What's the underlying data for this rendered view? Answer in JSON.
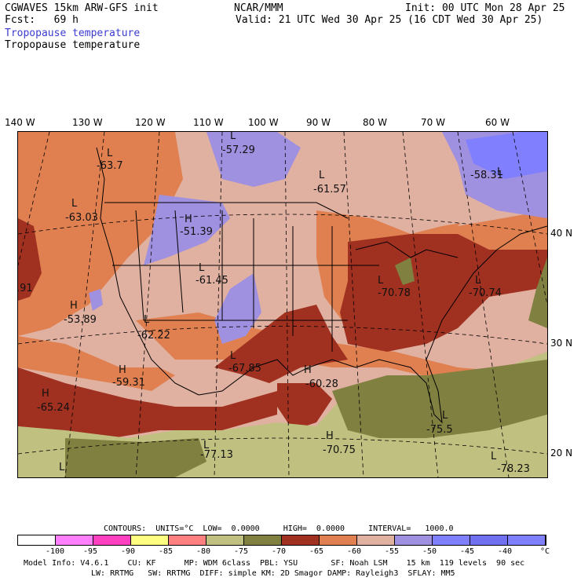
{
  "header": {
    "model": "CGWAVES 15km ARW-GFS init",
    "fcst": "Fcst:   69 h",
    "org": "NCAR/MMM",
    "init": "Init: 00 UTC Mon 28 Apr 25",
    "valid": "Valid: 21 UTC Wed 30 Apr 25 (16 CDT Wed 30 Apr 25)",
    "field1": "Tropopause temperature",
    "field2": "Tropopause temperature"
  },
  "lon_labels": [
    "140 W",
    "130 W",
    "120 W",
    "110 W",
    "100 W",
    "90 W",
    "80 W",
    "70 W",
    "60 W"
  ],
  "lat_labels": [
    "40 N",
    "30 N",
    "20 N"
  ],
  "map_labels": [
    {
      "t": "L"
    },
    {
      "t": "-63.7"
    },
    {
      "t": "L"
    },
    {
      "t": "-57.29"
    },
    {
      "t": "L"
    },
    {
      "t": "-61.57"
    },
    {
      "t": "L"
    },
    {
      "t": "-58.31"
    },
    {
      "t": "L"
    },
    {
      "t": "-63.03"
    },
    {
      "t": "H"
    },
    {
      "t": "-51.39"
    },
    {
      "t": "L"
    },
    {
      "t": "-61.45"
    },
    {
      "t": "L"
    },
    {
      "t": "-70.78"
    },
    {
      "t": "L"
    },
    {
      "t": "-70.74"
    },
    {
      "t": ".91"
    },
    {
      "t": "H"
    },
    {
      "t": "-53.89"
    },
    {
      "t": "L"
    },
    {
      "t": "-62.22"
    },
    {
      "t": "L"
    },
    {
      "t": "-67.85"
    },
    {
      "t": "H"
    },
    {
      "t": "-60.28"
    },
    {
      "t": "H"
    },
    {
      "t": "-59.31"
    },
    {
      "t": "H"
    },
    {
      "t": "-65.24"
    },
    {
      "t": "L"
    },
    {
      "t": "-75.5"
    },
    {
      "t": "L"
    },
    {
      "t": "-77.13"
    },
    {
      "t": "H"
    },
    {
      "t": "-70.75"
    },
    {
      "t": "L"
    },
    {
      "t": "-78.23"
    },
    {
      "t": "L"
    }
  ],
  "contours_line": "CONTOURS:  UNITS=°C  LOW=  0.0000     HIGH=  0.0000     INTERVAL=   1000.0",
  "colorbar": {
    "colors": [
      "#ffffff",
      "#ff80ff",
      "#ff40c0",
      "#ffff80",
      "#ff8080",
      "#c0c080",
      "#808040",
      "#a03020",
      "#e08050",
      "#e0b0a0",
      "#a090e0",
      "#8080ff",
      "#7070f0",
      "#8080ff"
    ],
    "ticks": [
      "-100",
      "-95",
      "-90",
      "-85",
      "-80",
      "-75",
      "-70",
      "-65",
      "-60",
      "-55",
      "-50",
      "-45",
      "-40",
      "°C"
    ]
  },
  "footer": {
    "line1": "Model Info: V4.6.1    CU: KF      MP: WDM 6class  PBL: YSU       SF: Noah LSM    15 km  119 levels  90 sec",
    "line2": "LW: RRTMG   SW: RRTMG  DIFF: simple KM: 2D Smagor DAMP: Rayleigh3  SFLAY: MM5"
  }
}
